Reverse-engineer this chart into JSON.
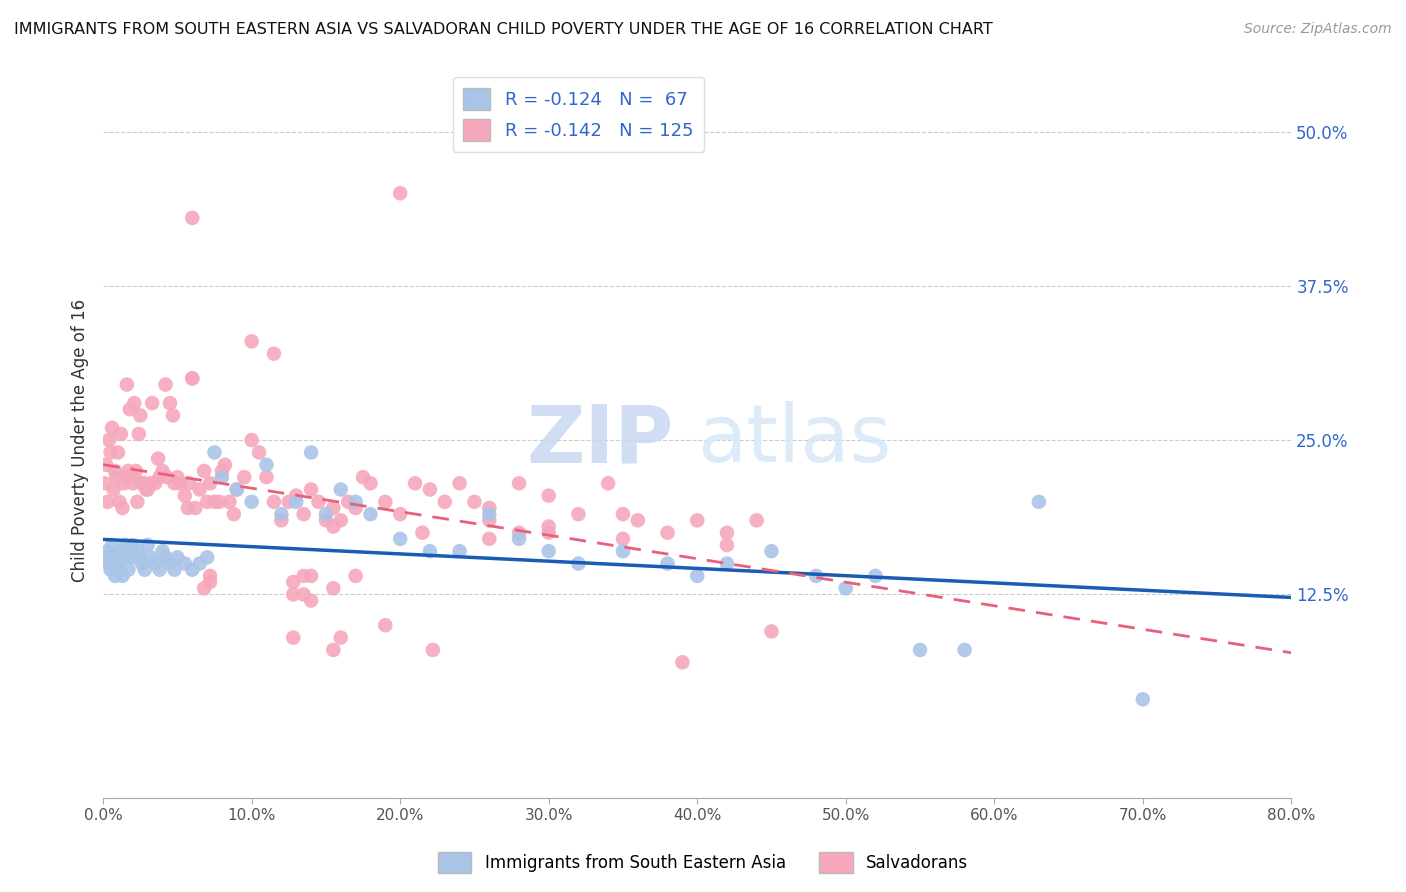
{
  "title": "IMMIGRANTS FROM SOUTH EASTERN ASIA VS SALVADORAN CHILD POVERTY UNDER THE AGE OF 16 CORRELATION CHART",
  "source": "Source: ZipAtlas.com",
  "ylabel": "Child Poverty Under the Age of 16",
  "right_yticks": [
    0.125,
    0.25,
    0.375,
    0.5
  ],
  "right_ytick_labels": [
    "12.5%",
    "25.0%",
    "37.5%",
    "50.0%"
  ],
  "xmin": 0.0,
  "xmax": 0.8,
  "ymin": -0.04,
  "ymax": 0.54,
  "legend_r_blue": "R = -0.124",
  "legend_n_blue": "N =  67",
  "legend_r_pink": "R = -0.142",
  "legend_n_pink": "N = 125",
  "blue_color": "#aac4e8",
  "pink_color": "#f5a8bc",
  "line_blue_color": "#1a5cb5",
  "line_pink_color": "#e8607a",
  "blue_x": [
    0.001,
    0.003,
    0.004,
    0.005,
    0.006,
    0.007,
    0.008,
    0.009,
    0.01,
    0.011,
    0.012,
    0.013,
    0.015,
    0.016,
    0.017,
    0.018,
    0.019,
    0.02,
    0.022,
    0.024,
    0.025,
    0.026,
    0.028,
    0.03,
    0.032,
    0.035,
    0.038,
    0.04,
    0.042,
    0.045,
    0.048,
    0.05,
    0.055,
    0.06,
    0.065,
    0.07,
    0.075,
    0.08,
    0.09,
    0.1,
    0.11,
    0.12,
    0.13,
    0.14,
    0.15,
    0.16,
    0.17,
    0.18,
    0.2,
    0.22,
    0.24,
    0.26,
    0.28,
    0.3,
    0.32,
    0.35,
    0.38,
    0.4,
    0.42,
    0.45,
    0.48,
    0.5,
    0.52,
    0.55,
    0.58,
    0.63,
    0.7
  ],
  "blue_y": [
    0.155,
    0.16,
    0.15,
    0.145,
    0.165,
    0.155,
    0.14,
    0.15,
    0.155,
    0.145,
    0.16,
    0.14,
    0.165,
    0.155,
    0.145,
    0.155,
    0.16,
    0.165,
    0.155,
    0.16,
    0.155,
    0.15,
    0.145,
    0.165,
    0.155,
    0.15,
    0.145,
    0.16,
    0.155,
    0.15,
    0.145,
    0.155,
    0.15,
    0.145,
    0.15,
    0.155,
    0.24,
    0.22,
    0.21,
    0.2,
    0.23,
    0.19,
    0.2,
    0.24,
    0.19,
    0.21,
    0.2,
    0.19,
    0.17,
    0.16,
    0.16,
    0.19,
    0.17,
    0.16,
    0.15,
    0.16,
    0.15,
    0.14,
    0.15,
    0.16,
    0.14,
    0.13,
    0.14,
    0.08,
    0.08,
    0.2,
    0.04
  ],
  "pink_x": [
    0.001,
    0.002,
    0.003,
    0.004,
    0.005,
    0.006,
    0.007,
    0.008,
    0.009,
    0.01,
    0.011,
    0.012,
    0.013,
    0.014,
    0.015,
    0.016,
    0.017,
    0.018,
    0.019,
    0.02,
    0.021,
    0.022,
    0.023,
    0.024,
    0.025,
    0.026,
    0.027,
    0.028,
    0.029,
    0.03,
    0.032,
    0.033,
    0.035,
    0.037,
    0.038,
    0.04,
    0.042,
    0.043,
    0.045,
    0.047,
    0.048,
    0.05,
    0.052,
    0.055,
    0.057,
    0.058,
    0.06,
    0.062,
    0.065,
    0.068,
    0.07,
    0.072,
    0.075,
    0.078,
    0.08,
    0.082,
    0.085,
    0.088,
    0.09,
    0.095,
    0.1,
    0.105,
    0.11,
    0.115,
    0.12,
    0.125,
    0.13,
    0.135,
    0.14,
    0.145,
    0.15,
    0.155,
    0.16,
    0.165,
    0.17,
    0.175,
    0.18,
    0.19,
    0.2,
    0.21,
    0.22,
    0.23,
    0.24,
    0.25,
    0.26,
    0.28,
    0.3,
    0.32,
    0.34,
    0.36,
    0.38,
    0.4,
    0.42,
    0.44,
    0.06,
    0.2,
    0.35,
    0.1,
    0.115,
    0.06,
    0.28,
    0.155,
    0.14,
    0.135,
    0.128,
    0.222,
    0.26,
    0.3,
    0.16,
    0.072,
    0.17,
    0.155,
    0.14,
    0.135,
    0.128,
    0.39,
    0.45,
    0.42,
    0.215,
    0.26,
    0.3,
    0.35,
    0.19,
    0.072,
    0.068,
    0.155,
    0.128
  ],
  "pink_y": [
    0.215,
    0.23,
    0.2,
    0.25,
    0.24,
    0.26,
    0.21,
    0.225,
    0.22,
    0.24,
    0.2,
    0.255,
    0.195,
    0.215,
    0.22,
    0.295,
    0.225,
    0.275,
    0.22,
    0.215,
    0.28,
    0.225,
    0.2,
    0.255,
    0.27,
    0.215,
    0.215,
    0.215,
    0.21,
    0.21,
    0.215,
    0.28,
    0.215,
    0.235,
    0.22,
    0.225,
    0.295,
    0.22,
    0.28,
    0.27,
    0.215,
    0.22,
    0.215,
    0.205,
    0.195,
    0.215,
    0.3,
    0.195,
    0.21,
    0.225,
    0.2,
    0.215,
    0.2,
    0.2,
    0.225,
    0.23,
    0.2,
    0.19,
    0.21,
    0.22,
    0.25,
    0.24,
    0.22,
    0.2,
    0.185,
    0.2,
    0.205,
    0.19,
    0.21,
    0.2,
    0.185,
    0.195,
    0.185,
    0.2,
    0.195,
    0.22,
    0.215,
    0.2,
    0.19,
    0.215,
    0.21,
    0.2,
    0.215,
    0.2,
    0.195,
    0.215,
    0.205,
    0.19,
    0.215,
    0.185,
    0.175,
    0.185,
    0.175,
    0.185,
    0.43,
    0.45,
    0.19,
    0.33,
    0.32,
    0.3,
    0.175,
    0.18,
    0.14,
    0.125,
    0.135,
    0.08,
    0.17,
    0.175,
    0.09,
    0.14,
    0.14,
    0.13,
    0.12,
    0.14,
    0.09,
    0.07,
    0.095,
    0.165,
    0.175,
    0.185,
    0.18,
    0.17,
    0.1,
    0.135,
    0.13,
    0.08,
    0.125
  ]
}
